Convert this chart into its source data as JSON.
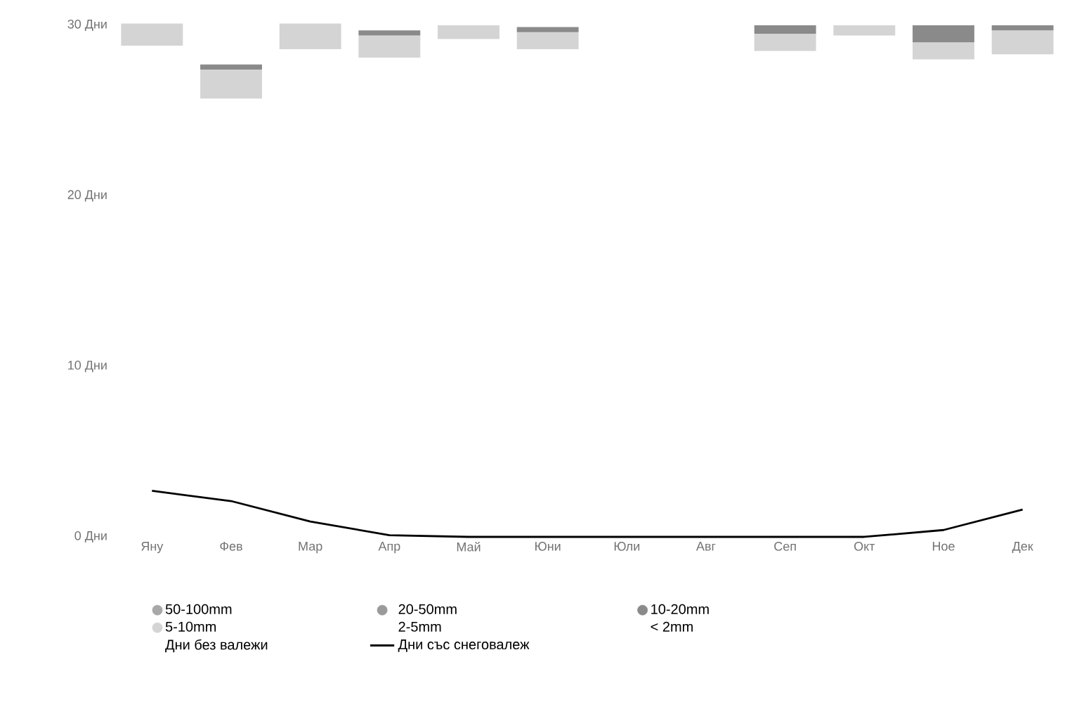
{
  "chart_data": {
    "type": "bar",
    "legend": "bottom",
    "categories": [
      "Яну",
      "Фев",
      "Мар",
      "Апр",
      "Май",
      "Юни",
      "Юли",
      "Авг",
      "Сеп",
      "Окт",
      "Ное",
      "Дек"
    ],
    "ylim": [
      0,
      30
    ],
    "yticks": [
      {
        "value": 0,
        "label": "0 Дни"
      },
      {
        "value": 10,
        "label": "10 Дни"
      },
      {
        "value": 20,
        "label": "20 Дни"
      },
      {
        "value": 30,
        "label": "30 Дни"
      }
    ],
    "series": [
      {
        "name": "Дни без валежи",
        "values": [
          null,
          null,
          null,
          null,
          null,
          null,
          null,
          null,
          null,
          null,
          null,
          null
        ]
      },
      {
        "name": "< 2mm",
        "values": [
          null,
          null,
          null,
          null,
          null,
          null,
          null,
          null,
          null,
          null,
          null,
          null
        ]
      },
      {
        "name": "2-5mm",
        "values": [
          null,
          null,
          null,
          null,
          null,
          null,
          null,
          null,
          null,
          null,
          null,
          null
        ]
      },
      {
        "name": "5-10mm",
        "color": "#d4d4d4",
        "base": [
          28.8,
          25.7,
          28.6,
          28.1,
          29.2,
          28.6,
          null,
          null,
          28.5,
          29.4,
          28.0,
          28.3
        ],
        "values": [
          1.3,
          1.7,
          1.5,
          1.3,
          0.8,
          1.0,
          null,
          null,
          1.0,
          0.6,
          1.0,
          1.4
        ]
      },
      {
        "name": "10-20mm",
        "color": "#8a8a8a",
        "base": [
          null,
          27.4,
          null,
          29.4,
          null,
          29.6,
          null,
          null,
          29.5,
          null,
          29.0,
          29.7
        ],
        "values": [
          null,
          0.3,
          null,
          0.3,
          null,
          0.3,
          null,
          null,
          0.5,
          null,
          1.0,
          0.3
        ]
      },
      {
        "name": "20-50mm",
        "color": "#9a9a9a",
        "values": [
          null,
          null,
          null,
          null,
          null,
          null,
          null,
          null,
          null,
          null,
          null,
          null
        ]
      },
      {
        "name": "50-100mm",
        "color": "#a8a8a8",
        "values": [
          null,
          null,
          null,
          null,
          null,
          null,
          null,
          null,
          null,
          null,
          null,
          null
        ]
      },
      {
        "name": "Дни със снеговалеж",
        "type": "line",
        "color": "#000000",
        "values": [
          2.7,
          2.1,
          0.9,
          0.1,
          0,
          0,
          0,
          0,
          0,
          0,
          0.4,
          1.6
        ]
      }
    ]
  }
}
